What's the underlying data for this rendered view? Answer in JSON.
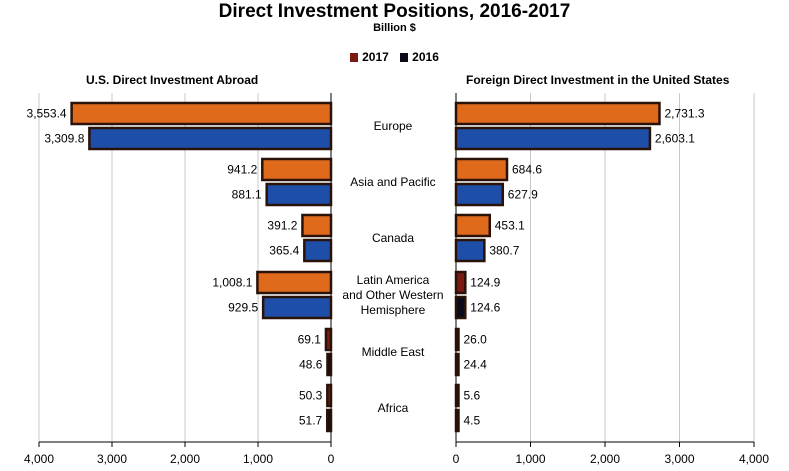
{
  "title": "Direct Investment Positions, 2016-2017",
  "subtitle": "Billion $",
  "legend": [
    {
      "label": "2017",
      "color": "#e06a1c"
    },
    {
      "label": "2016",
      "color": "#1f4ea8"
    }
  ],
  "colors": {
    "bar_2017": "#e06a1c",
    "bar_2016": "#1f4ea8",
    "bar_small_2017": "#7a1a12",
    "bar_small_2016": "#0a0a1a",
    "edge": "#2a1208",
    "grid": "#c8c8c8"
  },
  "chart_data": [
    {
      "type": "bar",
      "orientation": "horizontal",
      "title": "U.S. Direct Investment Abroad",
      "direction": "right-to-left",
      "categories": [
        "Europe",
        "Asia and Pacific",
        "Canada",
        "Latin America and Other Western Hemisphere",
        "Middle East",
        "Africa"
      ],
      "series": [
        {
          "name": "2017",
          "values": [
            3553.4,
            941.2,
            391.2,
            1008.1,
            69.1,
            50.3
          ],
          "labels": [
            "3,553.4",
            "941.2",
            "391.2",
            "1,008.1",
            "69.1",
            "50.3"
          ]
        },
        {
          "name": "2016",
          "values": [
            3309.8,
            881.1,
            365.4,
            929.5,
            48.6,
            51.7
          ],
          "labels": [
            "3,309.8",
            "881.1",
            "365.4",
            "929.5",
            "48.6",
            "51.7"
          ]
        }
      ],
      "xlim": [
        0,
        4000
      ],
      "ticks": [
        "4,000",
        "3,000",
        "2,000",
        "1,000",
        "0"
      ],
      "tick_values": [
        4000,
        3000,
        2000,
        1000,
        0
      ],
      "grid": true
    },
    {
      "type": "bar",
      "orientation": "horizontal",
      "title": "Foreign Direct Investment in the United States",
      "direction": "left-to-right",
      "categories": [
        "Europe",
        "Asia and Pacific",
        "Canada",
        "Latin America and Other Western Hemisphere",
        "Middle East",
        "Africa"
      ],
      "series": [
        {
          "name": "2017",
          "values": [
            2731.3,
            684.6,
            453.1,
            124.9,
            26.0,
            5.6
          ],
          "labels": [
            "2,731.3",
            "684.6",
            "453.1",
            "124.9",
            "26.0",
            "5.6"
          ]
        },
        {
          "name": "2016",
          "values": [
            2603.1,
            627.9,
            380.7,
            124.6,
            24.4,
            4.5
          ],
          "labels": [
            "2,603.1",
            "627.9",
            "380.7",
            "124.6",
            "24.4",
            "4.5"
          ]
        }
      ],
      "xlim": [
        0,
        4000
      ],
      "ticks": [
        "0",
        "1,000",
        "2,000",
        "3,000",
        "4,000"
      ],
      "tick_values": [
        0,
        1000,
        2000,
        3000,
        4000
      ],
      "grid": true
    }
  ],
  "category_labels": [
    [
      "Europe"
    ],
    [
      "Asia and Pacific"
    ],
    [
      "Canada"
    ],
    [
      "Latin America",
      "and Other Western",
      "Hemisphere"
    ],
    [
      "Middle East"
    ],
    [
      "Africa"
    ]
  ]
}
